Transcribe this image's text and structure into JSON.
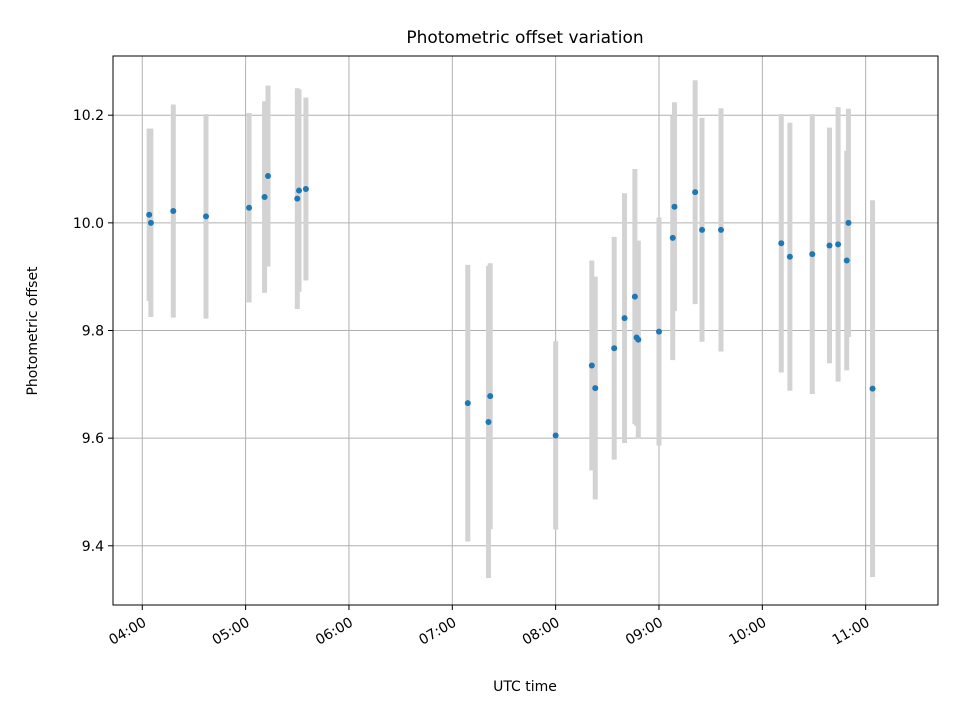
{
  "chart_data": {
    "type": "scatter",
    "title": "Photometric offset variation",
    "xlabel": "UTC time",
    "ylabel": "Photometric offset",
    "grid": true,
    "xlim": [
      "03:43",
      "11:42"
    ],
    "ylim": [
      9.29,
      10.31
    ],
    "x_ticks": [
      "04:00",
      "05:00",
      "06:00",
      "07:00",
      "08:00",
      "09:00",
      "10:00",
      "11:00"
    ],
    "y_ticks": [
      9.4,
      9.6,
      9.8,
      10.0,
      10.2
    ],
    "point_color": "#1f77b4",
    "errorbar_color": "#d3d3d3",
    "points": [
      {
        "x": "04:04",
        "y": 10.015,
        "err": 0.16
      },
      {
        "x": "04:05",
        "y": 10.0,
        "err": 0.175
      },
      {
        "x": "04:18",
        "y": 10.022,
        "err": 0.198
      },
      {
        "x": "04:37",
        "y": 10.012,
        "err": 0.19
      },
      {
        "x": "05:02",
        "y": 10.028,
        "err": 0.176
      },
      {
        "x": "05:11",
        "y": 10.048,
        "err": 0.178
      },
      {
        "x": "05:13",
        "y": 10.087,
        "err": 0.168
      },
      {
        "x": "05:30",
        "y": 10.045,
        "err": 0.205
      },
      {
        "x": "05:31",
        "y": 10.06,
        "err": 0.188
      },
      {
        "x": "05:35",
        "y": 10.063,
        "err": 0.17
      },
      {
        "x": "07:09",
        "y": 9.665,
        "err": 0.257
      },
      {
        "x": "07:21",
        "y": 9.63,
        "err": 0.29
      },
      {
        "x": "07:22",
        "y": 9.678,
        "err": 0.247
      },
      {
        "x": "08:00",
        "y": 9.605,
        "err": 0.175
      },
      {
        "x": "08:21",
        "y": 9.735,
        "err": 0.195
      },
      {
        "x": "08:23",
        "y": 9.693,
        "err": 0.207
      },
      {
        "x": "08:34",
        "y": 9.767,
        "err": 0.207
      },
      {
        "x": "08:40",
        "y": 9.823,
        "err": 0.232
      },
      {
        "x": "08:46",
        "y": 9.863,
        "err": 0.237
      },
      {
        "x": "08:47",
        "y": 9.787,
        "err": 0.164
      },
      {
        "x": "08:48",
        "y": 9.783,
        "err": 0.184
      },
      {
        "x": "09:00",
        "y": 9.798,
        "err": 0.212
      },
      {
        "x": "09:08",
        "y": 9.972,
        "err": 0.227
      },
      {
        "x": "09:09",
        "y": 10.03,
        "err": 0.194
      },
      {
        "x": "09:21",
        "y": 10.057,
        "err": 0.208
      },
      {
        "x": "09:25",
        "y": 9.987,
        "err": 0.208
      },
      {
        "x": "09:36",
        "y": 9.987,
        "err": 0.226
      },
      {
        "x": "10:11",
        "y": 9.962,
        "err": 0.24
      },
      {
        "x": "10:16",
        "y": 9.937,
        "err": 0.249
      },
      {
        "x": "10:29",
        "y": 9.942,
        "err": 0.26
      },
      {
        "x": "10:39",
        "y": 9.958,
        "err": 0.219
      },
      {
        "x": "10:44",
        "y": 9.96,
        "err": 0.255
      },
      {
        "x": "10:49",
        "y": 9.93,
        "err": 0.204
      },
      {
        "x": "10:50",
        "y": 10.0,
        "err": 0.212
      },
      {
        "x": "11:04",
        "y": 9.692,
        "err": 0.35
      }
    ]
  }
}
